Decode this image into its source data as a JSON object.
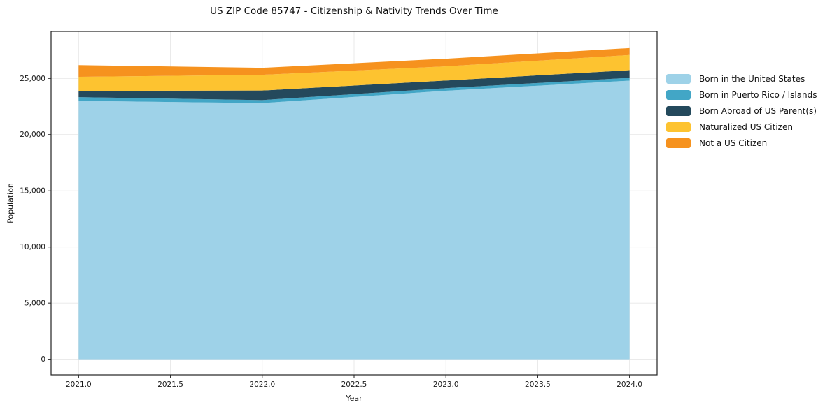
{
  "chart_data": {
    "type": "area",
    "stacked": true,
    "title": "US ZIP Code 85747 - Citizenship & Nativity Trends Over Time",
    "xlabel": "Year",
    "ylabel": "Population",
    "x": [
      2021,
      2022,
      2023,
      2024
    ],
    "series": [
      {
        "name": "Born in the United States",
        "color": "#9ED2E8",
        "values": [
          23000,
          22800,
          23900,
          24800
        ]
      },
      {
        "name": "Born in Puerto Rico / Islands",
        "color": "#42A6C6",
        "values": [
          330,
          270,
          230,
          250
        ]
      },
      {
        "name": "Born Abroad of US Parent(s)",
        "color": "#24495C",
        "values": [
          560,
          850,
          680,
          680
        ]
      },
      {
        "name": "Naturalized US Citizen",
        "color": "#FDC330",
        "values": [
          1250,
          1400,
          1260,
          1350
        ]
      },
      {
        "name": "Not a US Citizen",
        "color": "#F6921E",
        "values": [
          1040,
          620,
          680,
          620
        ]
      }
    ],
    "totals": [
      26180,
      25940,
      26750,
      27700
    ],
    "xlim": [
      2020.85,
      2024.15
    ],
    "ylim": [
      -1390,
      29180
    ],
    "x_ticks": {
      "values": [
        2021.0,
        2021.5,
        2022.0,
        2022.5,
        2023.0,
        2023.5,
        2024.0
      ],
      "labels": [
        "2021.0",
        "2021.5",
        "2022.0",
        "2022.5",
        "2023.0",
        "2023.5",
        "2024.0"
      ]
    },
    "y_ticks": {
      "values": [
        0,
        5000,
        10000,
        15000,
        20000,
        25000
      ],
      "labels": [
        "0",
        "5,000",
        "10,000",
        "15,000",
        "20,000",
        "25,000"
      ]
    },
    "grid": true,
    "legend_position": "right",
    "style": {
      "grid_color": "#e7e7e7",
      "spine_color": "#222222",
      "tick_text_color": "#1a1a1a"
    }
  }
}
